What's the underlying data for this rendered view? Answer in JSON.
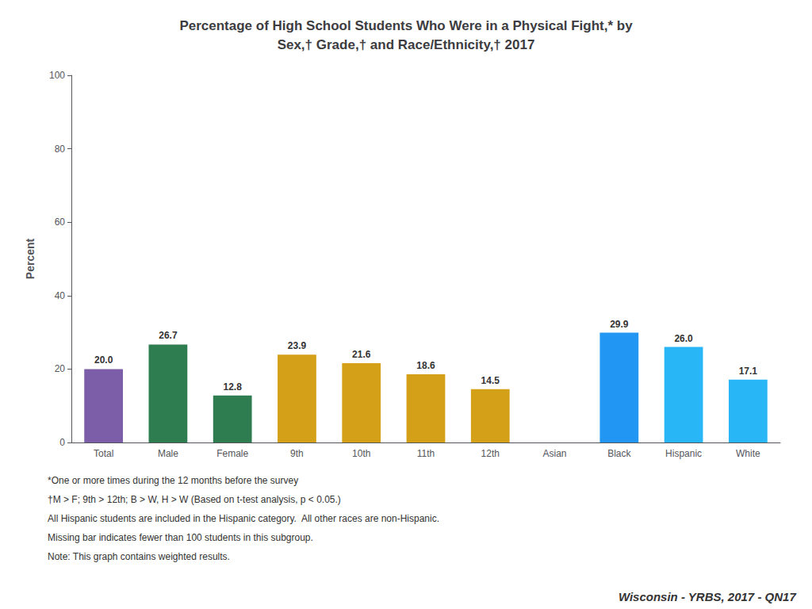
{
  "chart_data": {
    "type": "bar",
    "title": "Percentage of High School Students Who Were in a Physical Fight,* by\nSex,† Grade,† and Race/Ethnicity,† 2017",
    "categories": [
      "Total",
      "Male",
      "Female",
      "9th",
      "10th",
      "11th",
      "12th",
      "Asian",
      "Black",
      "Hispanic",
      "White"
    ],
    "values": [
      20.0,
      26.7,
      12.8,
      23.9,
      21.6,
      18.6,
      14.5,
      null,
      29.9,
      26.0,
      17.1
    ],
    "value_labels": [
      "20.0",
      "26.7",
      "12.8",
      "23.9",
      "21.6",
      "18.6",
      "14.5",
      null,
      "29.9",
      "26.0",
      "17.1"
    ],
    "colors": [
      "#7B5EA7",
      "#2D7D50",
      "#2D7D50",
      "#D4A017",
      "#D4A017",
      "#D4A017",
      "#D4A017",
      null,
      "#2196F3",
      "#29B6F6",
      "#29B6F6"
    ],
    "ylabel": "Percent",
    "ylim": [
      0,
      100
    ],
    "yticks": [
      0,
      20,
      40,
      60,
      80,
      100
    ],
    "grid": false,
    "data_labels": true,
    "annotations": [
      "*One or more times during the 12 months before the survey",
      "†M > F; 9th > 12th; B > W, H > W (Based on t-test analysis, p < 0.05.)",
      "All Hispanic students are included in the Hispanic category.  All other races are non-Hispanic.",
      "Missing bar indicates fewer than 100 students in this subgroup.",
      "Note: This graph contains weighted results.",
      "Wisconsin - YRBS, 2017 - QN17"
    ]
  }
}
